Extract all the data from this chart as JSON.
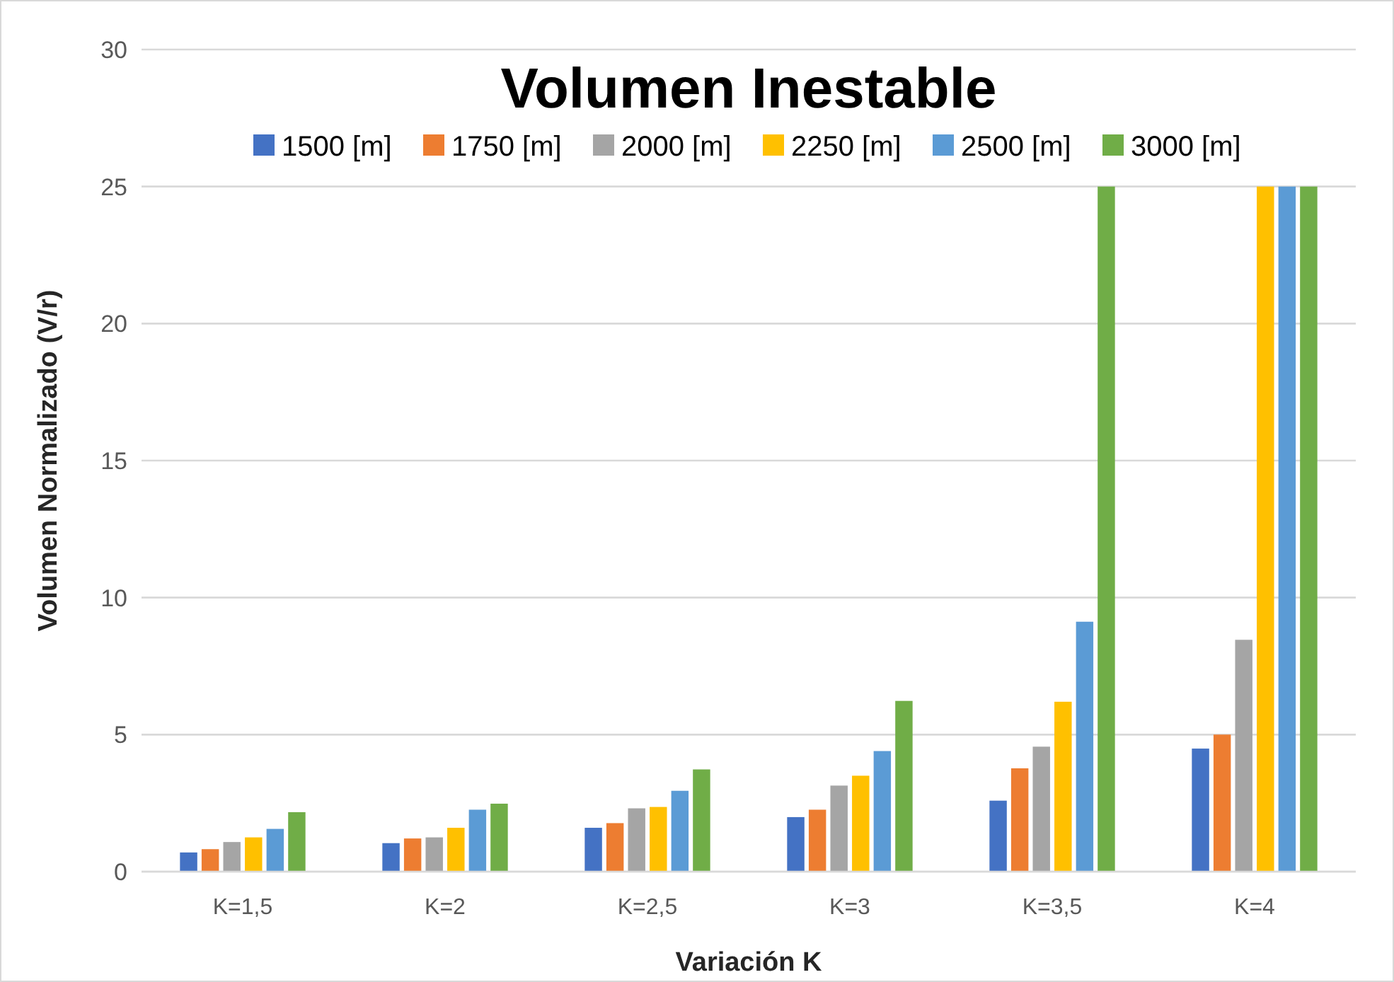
{
  "chart_data": {
    "type": "bar",
    "title": "Volumen Inestable",
    "xlabel": "Variación K",
    "ylabel": "Volumen Normalizado (V/r)",
    "categories": [
      "K=1,5",
      "K=2",
      "K=2,5",
      "K=3",
      "K=3,5",
      "K=4"
    ],
    "series": [
      {
        "name": "1500 [m]",
        "color": "#4472c4",
        "values": [
          0.7,
          1.04,
          1.6,
          1.99,
          2.59,
          4.49
        ]
      },
      {
        "name": "1750 [m]",
        "color": "#ed7d31",
        "values": [
          0.82,
          1.21,
          1.77,
          2.26,
          3.77,
          5.0
        ]
      },
      {
        "name": "2000 [m]",
        "color": "#a5a5a5",
        "values": [
          1.08,
          1.25,
          2.31,
          3.14,
          4.56,
          8.46
        ]
      },
      {
        "name": "2250 [m]",
        "color": "#ffc000",
        "values": [
          1.25,
          1.6,
          2.36,
          3.5,
          6.2,
          25
        ]
      },
      {
        "name": "2500 [m]",
        "color": "#5b9bd5",
        "values": [
          1.56,
          2.26,
          2.95,
          4.4,
          9.12,
          25
        ]
      },
      {
        "name": "3000 [m]",
        "color": "#70ad47",
        "values": [
          2.17,
          2.48,
          3.73,
          6.23,
          25,
          25
        ]
      }
    ],
    "ylim": [
      0,
      30
    ],
    "yticks": [
      0,
      5,
      10,
      15,
      20,
      25,
      30
    ],
    "grid": "y",
    "legend": "top"
  }
}
